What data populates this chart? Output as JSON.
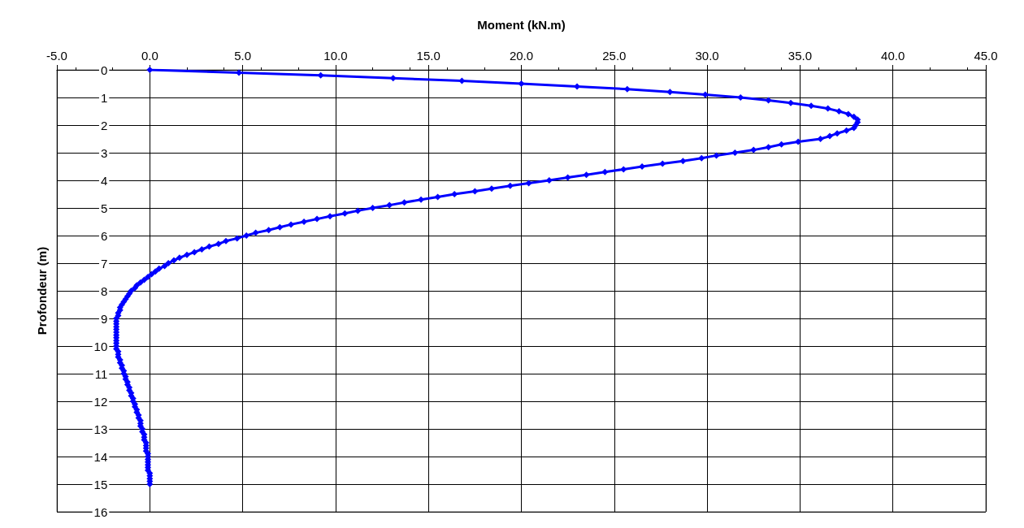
{
  "chart_data": {
    "type": "line",
    "xlabel": "Moment (kN.m)",
    "ylabel": "Profondeur (m)",
    "xlim": [
      -5,
      45
    ],
    "xticks": [
      {
        "value": -5,
        "label": "-5.0"
      },
      {
        "value": 0,
        "label": "0.0"
      },
      {
        "value": 5,
        "label": "5.0"
      },
      {
        "value": 10,
        "label": "10.0"
      },
      {
        "value": 15,
        "label": "15.0"
      },
      {
        "value": 20,
        "label": "20.0"
      },
      {
        "value": 25,
        "label": "25.0"
      },
      {
        "value": 30,
        "label": "30.0"
      },
      {
        "value": 35,
        "label": "35.0"
      },
      {
        "value": 40,
        "label": "40.0"
      },
      {
        "value": 45,
        "label": "45.0"
      }
    ],
    "ylim": [
      16,
      0
    ],
    "yticks": [
      0,
      1,
      2,
      3,
      4,
      5,
      6,
      7,
      8,
      9,
      10,
      11,
      12,
      13,
      14,
      15,
      16
    ],
    "grid": true,
    "marker": "diamond",
    "line_style": "solid",
    "series": [
      {
        "color": "#0000ff",
        "x": [
          0.0,
          4.8,
          9.2,
          13.1,
          16.8,
          20.0,
          23.0,
          25.7,
          28.0,
          29.9,
          31.8,
          33.3,
          34.5,
          35.6,
          36.5,
          37.1,
          37.6,
          37.9,
          38.1,
          38.1,
          38.0,
          37.9,
          37.5,
          37.0,
          36.6,
          36.1,
          34.9,
          34.0,
          33.3,
          32.5,
          31.5,
          30.5,
          29.7,
          28.7,
          27.6,
          26.5,
          25.5,
          24.5,
          23.5,
          22.5,
          21.5,
          20.4,
          19.4,
          18.4,
          17.5,
          16.4,
          15.5,
          14.6,
          13.7,
          12.9,
          12.0,
          11.2,
          10.5,
          9.7,
          9.0,
          8.3,
          7.6,
          7.0,
          6.4,
          5.7,
          5.2,
          4.7,
          4.1,
          3.7,
          3.2,
          2.8,
          2.4,
          2.0,
          1.6,
          1.3,
          1.0,
          0.8,
          0.5,
          0.3,
          0.1,
          -0.1,
          -0.3,
          -0.5,
          -0.7,
          -0.8,
          -1.0,
          -1.1,
          -1.2,
          -1.3,
          -1.4,
          -1.5,
          -1.6,
          -1.6,
          -1.7,
          -1.7,
          -1.8,
          -1.8,
          -1.8,
          -1.8,
          -1.8,
          -1.8,
          -1.8,
          -1.8,
          -1.8,
          -1.8,
          -1.8,
          -1.8,
          -1.7,
          -1.7,
          -1.7,
          -1.6,
          -1.6,
          -1.5,
          -1.5,
          -1.4,
          -1.4,
          -1.3,
          -1.3,
          -1.2,
          -1.2,
          -1.1,
          -1.1,
          -1.0,
          -1.0,
          -0.9,
          -0.9,
          -0.8,
          -0.8,
          -0.7,
          -0.7,
          -0.6,
          -0.6,
          -0.5,
          -0.5,
          -0.5,
          -0.4,
          -0.4,
          -0.3,
          -0.3,
          -0.3,
          -0.2,
          -0.2,
          -0.2,
          -0.2,
          -0.1,
          -0.1,
          -0.1,
          -0.1,
          -0.1,
          -0.1,
          -0.1,
          0.0,
          0.0,
          0.0,
          0.0,
          0.0
        ],
        "values": [
          0.0,
          0.1,
          0.2,
          0.3,
          0.4,
          0.5,
          0.6,
          0.7,
          0.8,
          0.9,
          1.0,
          1.1,
          1.2,
          1.3,
          1.4,
          1.5,
          1.6,
          1.7,
          1.8,
          1.9,
          2.0,
          2.1,
          2.2,
          2.3,
          2.4,
          2.5,
          2.6,
          2.7,
          2.8,
          2.9,
          3.0,
          3.1,
          3.2,
          3.3,
          3.4,
          3.5,
          3.6,
          3.7,
          3.8,
          3.9,
          4.0,
          4.1,
          4.2,
          4.3,
          4.4,
          4.5,
          4.6,
          4.7,
          4.8,
          4.9,
          5.0,
          5.1,
          5.2,
          5.3,
          5.4,
          5.5,
          5.6,
          5.7,
          5.8,
          5.9,
          6.0,
          6.1,
          6.2,
          6.3,
          6.4,
          6.5,
          6.6,
          6.7,
          6.8,
          6.9,
          7.0,
          7.1,
          7.2,
          7.3,
          7.4,
          7.5,
          7.6,
          7.7,
          7.8,
          7.9,
          8.0,
          8.1,
          8.2,
          8.3,
          8.4,
          8.5,
          8.6,
          8.7,
          8.8,
          8.9,
          9.0,
          9.1,
          9.2,
          9.3,
          9.4,
          9.5,
          9.6,
          9.7,
          9.8,
          9.9,
          10.0,
          10.1,
          10.2,
          10.3,
          10.4,
          10.5,
          10.6,
          10.7,
          10.8,
          10.9,
          11.0,
          11.1,
          11.2,
          11.3,
          11.4,
          11.5,
          11.6,
          11.7,
          11.8,
          11.9,
          12.0,
          12.1,
          12.2,
          12.3,
          12.4,
          12.5,
          12.6,
          12.7,
          12.8,
          12.9,
          13.0,
          13.1,
          13.2,
          13.3,
          13.4,
          13.5,
          13.6,
          13.7,
          13.8,
          13.9,
          14.0,
          14.1,
          14.2,
          14.3,
          14.4,
          14.5,
          14.6,
          14.7,
          14.8,
          14.9,
          15.0
        ]
      }
    ]
  }
}
